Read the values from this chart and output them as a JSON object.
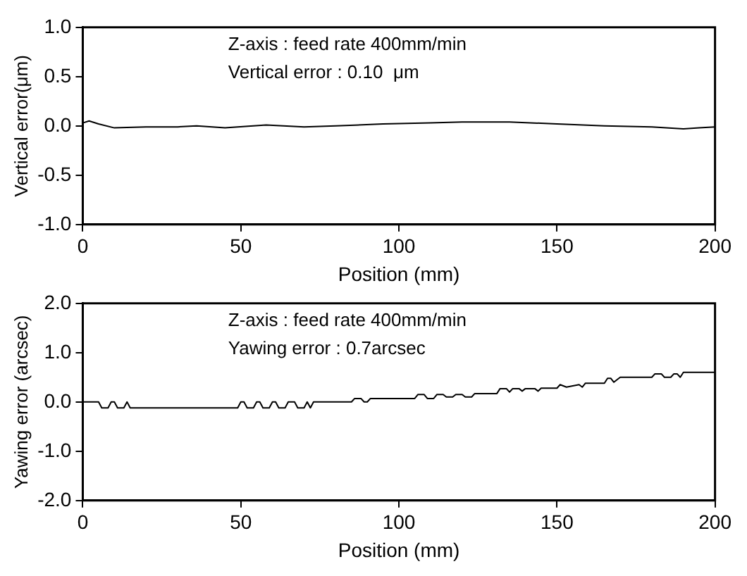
{
  "chart_data": [
    {
      "type": "line",
      "xlabel": "Position (mm)",
      "ylabel": "Vertical error(μm)",
      "annotations": [
        "Z-axis : feed rate 400mm/min",
        "Vertical error : 0.10  μm"
      ],
      "x": [
        0,
        2,
        5,
        10,
        20,
        30,
        36,
        45,
        58,
        70,
        80,
        95,
        110,
        120,
        135,
        150,
        165,
        180,
        190,
        195,
        200
      ],
      "series": [
        {
          "color": "#000000",
          "values": [
            0.03,
            0.05,
            0.02,
            -0.02,
            -0.01,
            -0.01,
            0.0,
            -0.02,
            0.01,
            -0.01,
            0.0,
            0.02,
            0.03,
            0.04,
            0.04,
            0.02,
            0.0,
            -0.01,
            -0.03,
            -0.02,
            -0.01
          ]
        }
      ],
      "xlim": [
        0,
        200
      ],
      "xticks": [
        0,
        50,
        100,
        150,
        200
      ],
      "ylim": [
        -1,
        1
      ],
      "yticks": [
        {
          "value": -1,
          "label": "-1.0"
        },
        {
          "value": -0.5,
          "label": "-0.5"
        },
        {
          "value": 0,
          "label": "0.0"
        },
        {
          "value": 0.5,
          "label": "0.5"
        },
        {
          "value": 1,
          "label": "1.0"
        }
      ],
      "grid": false,
      "legend": false,
      "marker": "none",
      "line_style": "solid"
    },
    {
      "type": "line",
      "xlabel": "Position (mm)",
      "ylabel": "Yawing error (arcsec)",
      "annotations": [
        "Z-axis : feed rate 400mm/min",
        "Yawing error : 0.7arcsec"
      ],
      "x": [
        0,
        5,
        6,
        8,
        9,
        10,
        11,
        13,
        14,
        15,
        49,
        50,
        51,
        52,
        54,
        55,
        56,
        57,
        59,
        60,
        61,
        62,
        64,
        65,
        67,
        68,
        70,
        71,
        72,
        73,
        85,
        86,
        88,
        89,
        90,
        91,
        93,
        94,
        105,
        106,
        108,
        109,
        111,
        112,
        114,
        115,
        117,
        118,
        120,
        121,
        123,
        124,
        131,
        132,
        134,
        135,
        136,
        138,
        139,
        140,
        143,
        144,
        145,
        150,
        151,
        153,
        157,
        158,
        159,
        165,
        166,
        167,
        168,
        170,
        180,
        181,
        183,
        184,
        186,
        187,
        188,
        189,
        190,
        200
      ],
      "series": [
        {
          "color": "#000000",
          "values": [
            0.0,
            0.0,
            -0.12,
            -0.12,
            0.0,
            0.0,
            -0.12,
            -0.12,
            0.0,
            -0.12,
            -0.12,
            0.0,
            0.0,
            -0.12,
            -0.12,
            0.0,
            0.0,
            -0.12,
            -0.12,
            0.0,
            0.0,
            -0.12,
            -0.12,
            0.0,
            0.0,
            -0.12,
            -0.12,
            0.0,
            -0.12,
            0.0,
            0.0,
            0.07,
            0.07,
            0.0,
            0.0,
            0.07,
            0.07,
            0.07,
            0.07,
            0.15,
            0.15,
            0.07,
            0.07,
            0.15,
            0.15,
            0.1,
            0.1,
            0.15,
            0.15,
            0.1,
            0.1,
            0.17,
            0.17,
            0.27,
            0.27,
            0.2,
            0.27,
            0.27,
            0.22,
            0.27,
            0.27,
            0.22,
            0.28,
            0.28,
            0.35,
            0.3,
            0.35,
            0.3,
            0.38,
            0.38,
            0.48,
            0.48,
            0.4,
            0.5,
            0.5,
            0.57,
            0.57,
            0.5,
            0.5,
            0.57,
            0.57,
            0.5,
            0.6,
            0.6
          ]
        }
      ],
      "xlim": [
        0,
        200
      ],
      "xticks": [
        0,
        50,
        100,
        150,
        200
      ],
      "ylim": [
        -2,
        2
      ],
      "yticks": [
        {
          "value": -2,
          "label": "-2.0"
        },
        {
          "value": -1,
          "label": "-1.0"
        },
        {
          "value": 0,
          "label": "0.0"
        },
        {
          "value": 1,
          "label": "1.0"
        },
        {
          "value": 2,
          "label": "2.0"
        }
      ],
      "grid": false,
      "legend": false,
      "marker": "none",
      "line_style": "solid"
    }
  ]
}
